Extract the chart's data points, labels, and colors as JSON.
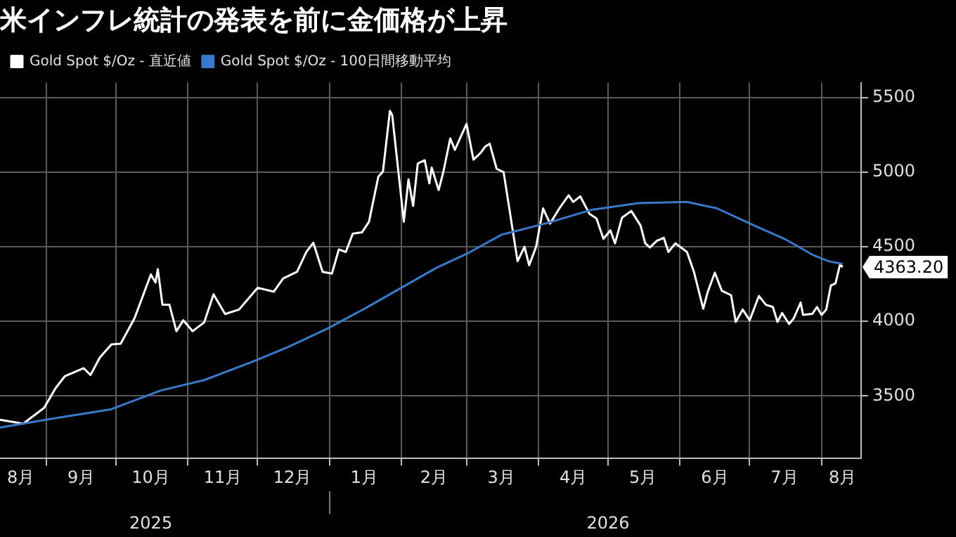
{
  "chart_data": {
    "type": "line",
    "title": "米インフレ統計の発表を前に金価格が上昇",
    "legend": "top left",
    "grid": true,
    "marker": "none",
    "line_style": "solid",
    "xlim": [
      "2025-08-12",
      "2026-08-18"
    ],
    "xticks": [
      {
        "value": "2025-08-21",
        "label": "8月"
      },
      {
        "value": "2025-09-01",
        "label": null
      },
      {
        "value": "2025-09-16",
        "label": "9月"
      },
      {
        "value": "2025-10-01",
        "label": null
      },
      {
        "value": "2025-10-16",
        "label": "10月"
      },
      {
        "value": "2025-11-01",
        "label": null
      },
      {
        "value": "2025-11-16",
        "label": "11月"
      },
      {
        "value": "2025-12-01",
        "label": null
      },
      {
        "value": "2025-12-16",
        "label": "12月"
      },
      {
        "value": "2026-01-01",
        "label": null
      },
      {
        "value": "2026-01-16",
        "label": "1月"
      },
      {
        "value": "2026-02-01",
        "label": null
      },
      {
        "value": "2026-02-15",
        "label": "2月"
      },
      {
        "value": "2026-03-01",
        "label": null
      },
      {
        "value": "2026-03-16",
        "label": "3月"
      },
      {
        "value": "2026-04-01",
        "label": null
      },
      {
        "value": "2026-04-16",
        "label": "4月"
      },
      {
        "value": "2026-05-01",
        "label": null
      },
      {
        "value": "2026-05-16",
        "label": "5月"
      },
      {
        "value": "2026-06-01",
        "label": null
      },
      {
        "value": "2026-06-16",
        "label": "6月"
      },
      {
        "value": "2026-07-01",
        "label": null
      },
      {
        "value": "2026-07-16",
        "label": "7月"
      },
      {
        "value": "2026-08-01",
        "label": null
      },
      {
        "value": "2026-08-10",
        "label": "8月"
      }
    ],
    "x2lim": [
      "2025-08-12",
      "2026-08-18"
    ],
    "x2ticks": [
      {
        "value": "2025-10-16",
        "label": "2025"
      },
      {
        "value": "2026-01-01",
        "label": null
      },
      {
        "value": "2026-05-01",
        "label": "2026"
      }
    ],
    "ylim": [
      3080,
      5600
    ],
    "yticks": [
      3500,
      4000,
      4500,
      5000,
      5500
    ],
    "series": [
      {
        "name": "Gold Spot $/Oz - 直近値",
        "color": "#ffffff",
        "x": [
          "2025-08-12",
          "2025-08-22",
          "2025-08-31",
          "2025-09-05",
          "2025-09-09",
          "2025-09-17",
          "2025-09-20",
          "2025-09-24",
          "2025-09-29",
          "2025-10-03",
          "2025-10-09",
          "2025-10-16",
          "2025-10-18",
          "2025-10-19",
          "2025-10-21",
          "2025-10-24",
          "2025-10-27",
          "2025-10-30",
          "2025-11-03",
          "2025-11-08",
          "2025-11-12",
          "2025-11-17",
          "2025-11-23",
          "2025-12-01",
          "2025-12-08",
          "2025-12-12",
          "2025-12-18",
          "2025-12-22",
          "2025-12-25",
          "2025-12-29",
          "2026-01-02",
          "2026-01-05",
          "2026-01-08",
          "2026-01-11",
          "2026-01-15",
          "2026-01-18",
          "2026-01-22",
          "2026-01-24",
          "2026-01-27",
          "2026-01-28",
          "2026-02-02",
          "2026-02-04",
          "2026-02-06",
          "2026-02-08",
          "2026-02-11",
          "2026-02-13",
          "2026-02-14",
          "2026-02-17",
          "2026-02-19",
          "2026-02-22",
          "2026-02-24",
          "2026-03-01",
          "2026-03-04",
          "2026-03-07",
          "2026-03-09",
          "2026-03-11",
          "2026-03-14",
          "2026-03-17",
          "2026-03-23",
          "2026-03-26",
          "2026-03-28",
          "2026-03-31",
          "2026-04-03",
          "2026-04-06",
          "2026-04-10",
          "2026-04-14",
          "2026-04-16",
          "2026-04-19",
          "2026-04-23",
          "2026-04-26",
          "2026-04-29",
          "2026-05-02",
          "2026-05-04",
          "2026-05-07",
          "2026-05-11",
          "2026-05-15",
          "2026-05-17",
          "2026-05-19",
          "2026-05-22",
          "2026-05-25",
          "2026-05-27",
          "2026-05-30",
          "2026-06-04",
          "2026-06-07",
          "2026-06-11",
          "2026-06-13",
          "2026-06-16",
          "2026-06-19",
          "2026-06-23",
          "2026-06-25",
          "2026-06-28",
          "2026-07-01",
          "2026-07-05",
          "2026-07-08",
          "2026-07-11",
          "2026-07-13",
          "2026-07-15",
          "2026-07-18",
          "2026-07-20",
          "2026-07-23",
          "2026-07-24",
          "2026-07-28",
          "2026-07-30",
          "2026-08-01",
          "2026-08-03",
          "2026-08-05",
          "2026-08-07",
          "2026-08-09",
          "2026-08-10"
        ],
        "values": [
          3340,
          3314,
          3420,
          3553,
          3633,
          3686,
          3640,
          3757,
          3845,
          3850,
          4022,
          4314,
          4260,
          4350,
          4111,
          4111,
          3934,
          4007,
          3934,
          3993,
          4181,
          4049,
          4079,
          4225,
          4199,
          4288,
          4332,
          4465,
          4527,
          4332,
          4320,
          4482,
          4465,
          4588,
          4597,
          4668,
          4969,
          5004,
          5411,
          5382,
          4668,
          4951,
          4774,
          5058,
          5080,
          4925,
          5030,
          4880,
          5000,
          5226,
          5150,
          5323,
          5084,
          5128,
          5170,
          5190,
          5022,
          5000,
          4403,
          4500,
          4376,
          4500,
          4757,
          4655,
          4757,
          4845,
          4800,
          4838,
          4720,
          4690,
          4553,
          4610,
          4523,
          4695,
          4740,
          4642,
          4523,
          4495,
          4540,
          4560,
          4465,
          4523,
          4465,
          4332,
          4084,
          4200,
          4326,
          4205,
          4175,
          3996,
          4079,
          4007,
          4170,
          4111,
          4096,
          3996,
          4056,
          3982,
          4020,
          4126,
          4043,
          4050,
          4096,
          4043,
          4079,
          4240,
          4255,
          4385,
          4363.2
        ],
        "value_labels": [
          null,
          null,
          null,
          null,
          null,
          null,
          null,
          null,
          null,
          null,
          null,
          null,
          null,
          null,
          null,
          null,
          null,
          null,
          null,
          null,
          null,
          null,
          null,
          null,
          null,
          null,
          null,
          null,
          null,
          null,
          null,
          null,
          null,
          null,
          null,
          null,
          null,
          null,
          null,
          null,
          null,
          null,
          null,
          null,
          null,
          null,
          null,
          null,
          null,
          null,
          null,
          null,
          null,
          null,
          null,
          null,
          null,
          null,
          null,
          null,
          null,
          null,
          null,
          null,
          null,
          null,
          null,
          null,
          null,
          null,
          null,
          null,
          null,
          null,
          null,
          null,
          null,
          null,
          null,
          null,
          null,
          null,
          null,
          null,
          null,
          null,
          null,
          null,
          null,
          null,
          null,
          null,
          null,
          null,
          null,
          null,
          null,
          null,
          null,
          null,
          null,
          null,
          null,
          null,
          null,
          null,
          null,
          null,
          "4363.20"
        ]
      },
      {
        "name": "Gold Spot $/Oz - 100日間移動平均",
        "color": "#3a78c9",
        "x": [
          "2025-08-12",
          "2025-09-01",
          "2025-09-29",
          "2025-10-20",
          "2025-11-08",
          "2025-11-29",
          "2025-12-14",
          "2025-12-31",
          "2026-01-16",
          "2026-01-31",
          "2026-02-16",
          "2026-03-02",
          "2026-03-16",
          "2026-04-05",
          "2026-04-24",
          "2026-05-14",
          "2026-06-04",
          "2026-06-17",
          "2026-07-03",
          "2026-07-16",
          "2026-07-28",
          "2026-08-04",
          "2026-08-10"
        ],
        "values": [
          3288,
          3341,
          3411,
          3535,
          3606,
          3730,
          3827,
          3951,
          4084,
          4217,
          4358,
          4460,
          4580,
          4660,
          4748,
          4792,
          4801,
          4757,
          4642,
          4553,
          4447,
          4403,
          4385
        ]
      }
    ]
  }
}
